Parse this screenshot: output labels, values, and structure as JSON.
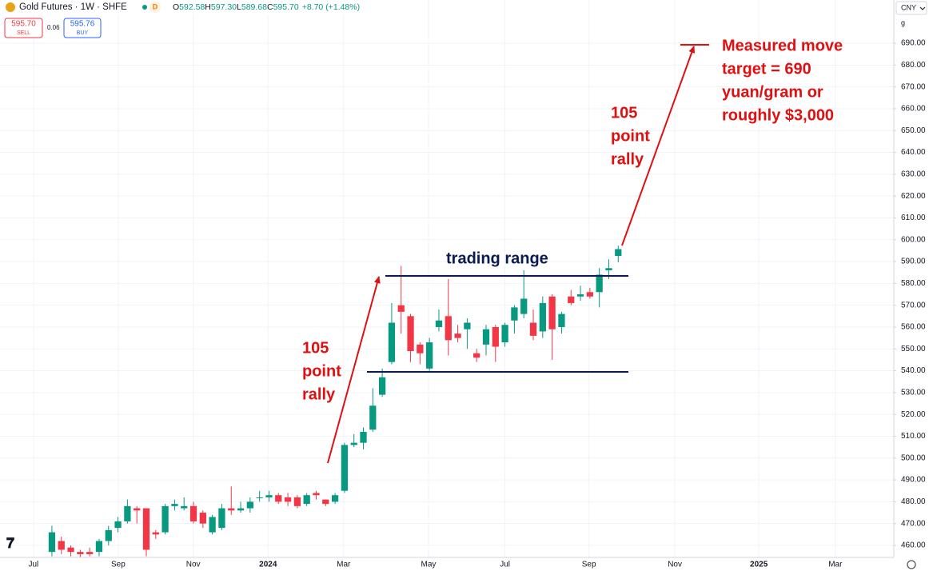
{
  "chart_data": {
    "type": "candlestick",
    "header": {
      "title": "Gold Futures · 1W · SHFE",
      "badge": "D",
      "ohlc": [
        {
          "label": "O",
          "value": "592.58"
        },
        {
          "label": "H",
          "value": "597.30"
        },
        {
          "label": "L",
          "value": "589.68"
        },
        {
          "label": "C",
          "value": "595.70"
        }
      ],
      "change": "+8.70 (+1.48%)",
      "sell": {
        "price": "595.70",
        "label": "SELL"
      },
      "spread": "0.06",
      "buy": {
        "price": "595.76",
        "label": "BUY"
      },
      "currency": "CNY",
      "unit": "g"
    },
    "up_color": "#089981",
    "down_color": "#f23645",
    "x": [
      0,
      1,
      2,
      3,
      4,
      5,
      6,
      7,
      8,
      9,
      10,
      11,
      12,
      13,
      14,
      15,
      16,
      17,
      18,
      19,
      20,
      21,
      22,
      23,
      24,
      25,
      26,
      27,
      28,
      29,
      30,
      31,
      32,
      33,
      34,
      35,
      36,
      37,
      38,
      39,
      40,
      41,
      42,
      43,
      44,
      45,
      46,
      47,
      48,
      49,
      50,
      51,
      52,
      53,
      54,
      55,
      56,
      57,
      58,
      59,
      60
    ],
    "open": [
      457,
      462,
      459,
      457,
      457,
      457,
      462,
      468,
      471,
      477,
      477,
      466,
      466,
      478,
      477,
      478,
      475,
      466,
      468,
      477,
      476,
      477,
      482,
      482,
      483,
      482,
      482,
      479,
      484,
      481,
      480,
      485,
      506,
      507,
      513,
      529,
      544,
      570,
      565,
      552,
      541,
      560,
      565,
      557,
      559,
      548,
      552,
      560,
      553,
      563,
      566,
      562,
      558,
      574,
      560,
      574,
      574,
      576,
      576,
      586,
      592.58
    ],
    "high": [
      469,
      464,
      460,
      458,
      459,
      463,
      469,
      473,
      481,
      478,
      477,
      467,
      479,
      481,
      482,
      480,
      476,
      474,
      479,
      487,
      480,
      482,
      485,
      485,
      484,
      484,
      483,
      484,
      485,
      481,
      484,
      507,
      511,
      514,
      532,
      541,
      571,
      588,
      566,
      553,
      555,
      568,
      582,
      561,
      564,
      550,
      561,
      561,
      562,
      570,
      586,
      568,
      574,
      575,
      567,
      577,
      579,
      578,
      587,
      591,
      597.3
    ],
    "low": [
      455,
      456,
      455,
      454,
      455,
      455,
      460,
      466,
      470,
      470,
      455,
      463,
      465,
      476,
      476,
      470,
      468,
      465,
      467,
      474,
      475,
      475,
      480,
      480,
      479,
      478,
      477,
      478,
      481,
      478,
      479,
      484,
      505,
      504,
      512,
      528,
      543,
      557,
      544,
      543,
      540,
      558,
      547,
      553,
      550,
      544,
      547,
      544,
      551,
      557,
      564,
      554,
      555,
      545,
      557,
      570,
      572,
      573,
      569,
      582,
      589.68
    ],
    "close": [
      466,
      458,
      457,
      456,
      456,
      462,
      467,
      471,
      478,
      476,
      458,
      465,
      478,
      479,
      478,
      471,
      470,
      473,
      477,
      476,
      477,
      480,
      482,
      483,
      480,
      480,
      478,
      483,
      483,
      479,
      483,
      506,
      507,
      512,
      524,
      537,
      562,
      567,
      549,
      548,
      553,
      563,
      554,
      555,
      562,
      546,
      559,
      551,
      561,
      569,
      573,
      556,
      571,
      559,
      566,
      571,
      575,
      574,
      584,
      587,
      595.7
    ],
    "xlim": [
      -5.5,
      89.2
    ],
    "xticks": [
      {
        "value": -1.95,
        "label": "Jul"
      },
      {
        "value": 7.03,
        "label": "Sep"
      },
      {
        "value": 14.97,
        "label": "Nov"
      },
      {
        "value": 22.9,
        "label": "2024"
      },
      {
        "value": 30.9,
        "label": "Mar"
      },
      {
        "value": 39.9,
        "label": "May"
      },
      {
        "value": 48.0,
        "label": "Jul"
      },
      {
        "value": 56.9,
        "label": "Sep"
      },
      {
        "value": 66.0,
        "label": "Nov"
      },
      {
        "value": 74.9,
        "label": "2025"
      },
      {
        "value": 83.0,
        "label": "Mar"
      }
    ],
    "ylim": [
      454.5,
      709.8
    ],
    "yticks": [
      {
        "value": 460,
        "label": "460.00"
      },
      {
        "value": 470,
        "label": "470.00"
      },
      {
        "value": 480,
        "label": "480.00"
      },
      {
        "value": 490,
        "label": "490.00"
      },
      {
        "value": 500,
        "label": "500.00"
      },
      {
        "value": 510,
        "label": "510.00"
      },
      {
        "value": 520,
        "label": "520.00"
      },
      {
        "value": 530,
        "label": "530.00"
      },
      {
        "value": 540,
        "label": "540.00"
      },
      {
        "value": 550,
        "label": "550.00"
      },
      {
        "value": 560,
        "label": "560.00"
      },
      {
        "value": 570,
        "label": "570.00"
      },
      {
        "value": 580,
        "label": "580.00"
      },
      {
        "value": 590,
        "label": "590.00"
      },
      {
        "value": 600,
        "label": "600.00"
      },
      {
        "value": 610,
        "label": "610.00"
      },
      {
        "value": 620,
        "label": "620.00"
      },
      {
        "value": 630,
        "label": "630.00"
      },
      {
        "value": 640,
        "label": "640.00"
      },
      {
        "value": 650,
        "label": "650.00"
      },
      {
        "value": 660,
        "label": "660.00"
      },
      {
        "value": 670,
        "label": "670.00"
      },
      {
        "value": 680,
        "label": "680.00"
      },
      {
        "value": 690,
        "label": "690.00"
      }
    ],
    "grid": true,
    "annotations": {
      "range": "trading range",
      "rally_left": [
        "105",
        "point",
        "rally"
      ],
      "rally_right": [
        "105",
        "point",
        "rally"
      ],
      "target": [
        "Measured move",
        "target = 690",
        "yuan/gram or",
        "roughly $3,000"
      ]
    }
  }
}
